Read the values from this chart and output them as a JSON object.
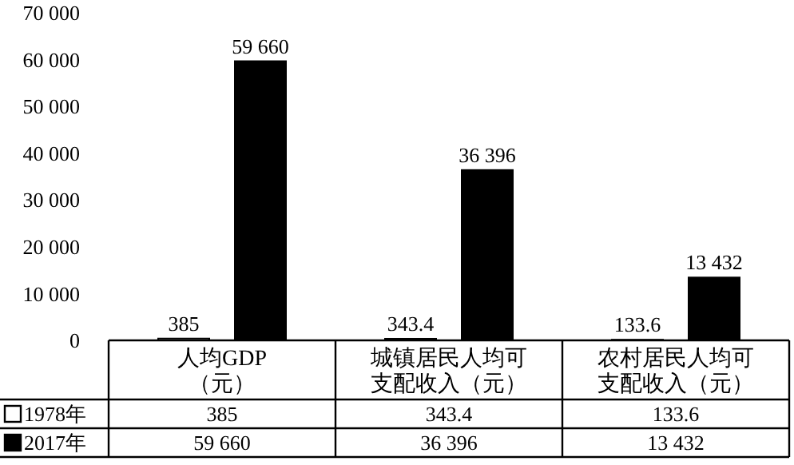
{
  "chart_data": {
    "type": "bar",
    "categories": [
      "人均GDP（元）",
      "城镇居民人均可支配收入（元）",
      "农村居民人均可支配收入（元）"
    ],
    "series": [
      {
        "name": "1978年",
        "color": "#ffffff",
        "values": [
          385,
          343.4,
          133.6
        ],
        "value_labels": [
          "385",
          "343.4",
          "133.6"
        ]
      },
      {
        "name": "2017年",
        "color": "#000000",
        "values": [
          59660,
          36396,
          13432
        ],
        "value_labels": [
          "59 660",
          "36 396",
          "13 432"
        ]
      }
    ],
    "ylim": [
      0,
      70000
    ],
    "yticks": [
      {
        "value": 0,
        "label": "0"
      },
      {
        "value": 10000,
        "label": "10 000"
      },
      {
        "value": 20000,
        "label": "20 000"
      },
      {
        "value": 30000,
        "label": "30 000"
      },
      {
        "value": 40000,
        "label": "40 000"
      },
      {
        "value": 50000,
        "label": "50 000"
      },
      {
        "value": 60000,
        "label": "60 000"
      },
      {
        "value": 70000,
        "label": "70 000"
      }
    ],
    "grid": false,
    "legend": "bottom left"
  }
}
